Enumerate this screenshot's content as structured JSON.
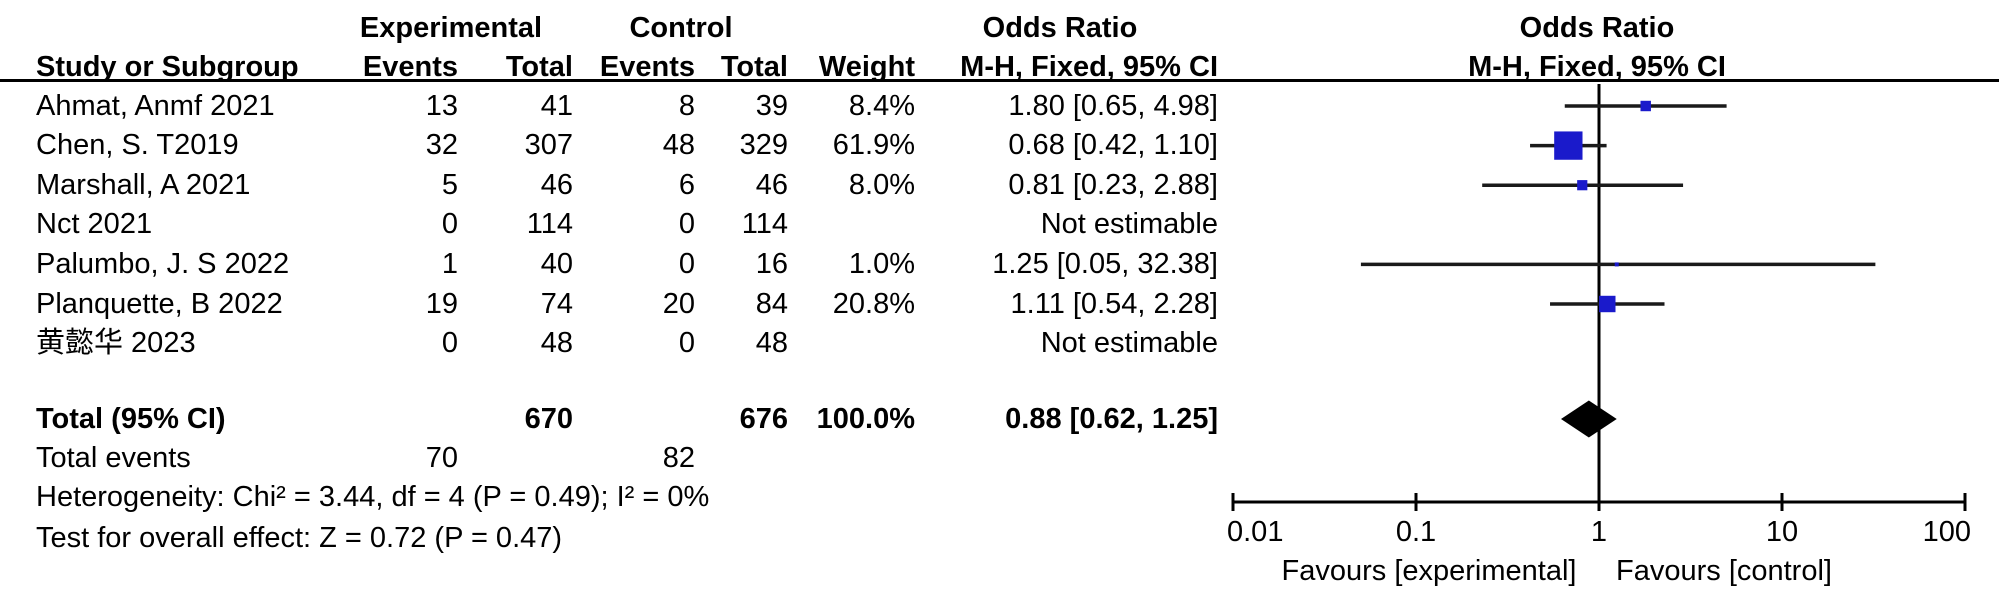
{
  "header": {
    "group_experimental": "Experimental",
    "group_control": "Control",
    "or_text_col_title": "Odds Ratio",
    "or_plot_col_title": "Odds Ratio",
    "col_study": "Study or Subgroup",
    "col_events_exp": "Events",
    "col_total_exp": "Total",
    "col_events_ctl": "Events",
    "col_total_ctl": "Total",
    "col_weight": "Weight",
    "col_or_text": "M-H, Fixed, 95% CI",
    "col_or_plot": "M-H, Fixed, 95% CI"
  },
  "studies": [
    {
      "name": "Ahmat, Anmf 2021",
      "events_exp": "13",
      "total_exp": "41",
      "events_ctl": "8",
      "total_ctl": "39",
      "weight": "8.4%",
      "or_ci": "1.80 [0.65, 4.98]"
    },
    {
      "name": "Chen, S. T2019",
      "events_exp": "32",
      "total_exp": "307",
      "events_ctl": "48",
      "total_ctl": "329",
      "weight": "61.9%",
      "or_ci": "0.68 [0.42, 1.10]"
    },
    {
      "name": "Marshall, A 2021",
      "events_exp": "5",
      "total_exp": "46",
      "events_ctl": "6",
      "total_ctl": "46",
      "weight": "8.0%",
      "or_ci": "0.81 [0.23, 2.88]"
    },
    {
      "name": "Nct 2021",
      "events_exp": "0",
      "total_exp": "114",
      "events_ctl": "0",
      "total_ctl": "114",
      "weight": "",
      "or_ci": "Not estimable"
    },
    {
      "name": "Palumbo, J. S 2022",
      "events_exp": "1",
      "total_exp": "40",
      "events_ctl": "0",
      "total_ctl": "16",
      "weight": "1.0%",
      "or_ci": "1.25 [0.05, 32.38]"
    },
    {
      "name": "Planquette, B 2022",
      "events_exp": "19",
      "total_exp": "74",
      "events_ctl": "20",
      "total_ctl": "84",
      "weight": "20.8%",
      "or_ci": "1.11 [0.54, 2.28]"
    },
    {
      "name": "黄懿华 2023",
      "events_exp": "0",
      "total_exp": "48",
      "events_ctl": "0",
      "total_ctl": "48",
      "weight": "",
      "or_ci": "Not estimable"
    }
  ],
  "totals": {
    "label": "Total (95% CI)",
    "total_exp": "670",
    "total_ctl": "676",
    "weight": "100.0%",
    "or_ci": "0.88 [0.62, 1.25]"
  },
  "total_events": {
    "label": "Total events",
    "exp": "70",
    "ctl": "82"
  },
  "footnotes": {
    "heterogeneity": "Heterogeneity: Chi² = 3.44, df = 4 (P = 0.49); I² = 0%",
    "overall_effect": "Test for overall effect: Z = 0.72 (P = 0.47)"
  },
  "axis": {
    "tick_labels": [
      "0.01",
      "0.1",
      "1",
      "10",
      "100"
    ],
    "favours_left": "Favours [experimental]",
    "favours_right": "Favours [control]"
  },
  "colors": {
    "square": "#1a1acb",
    "diamond": "#000000",
    "ci_line": "#1a1a1a",
    "axis": "#000000"
  },
  "chart_data": {
    "type": "forest",
    "effect_measure": "Odds Ratio, M-H, Fixed, 95% CI",
    "x_scale": "log10",
    "xlim": [
      0.01,
      100
    ],
    "x_ticks": [
      0.01,
      0.1,
      1,
      10,
      100
    ],
    "null_line": 1,
    "points": [
      {
        "name": "Ahmat, Anmf 2021",
        "or": 1.8,
        "lo": 0.65,
        "hi": 4.98,
        "weight_pct": 8.4,
        "estimable": true
      },
      {
        "name": "Chen, S. T2019",
        "or": 0.68,
        "lo": 0.42,
        "hi": 1.1,
        "weight_pct": 61.9,
        "estimable": true
      },
      {
        "name": "Marshall, A 2021",
        "or": 0.81,
        "lo": 0.23,
        "hi": 2.88,
        "weight_pct": 8.0,
        "estimable": true
      },
      {
        "name": "Nct 2021",
        "or": null,
        "lo": null,
        "hi": null,
        "weight_pct": null,
        "estimable": false
      },
      {
        "name": "Palumbo, J. S 2022",
        "or": 1.25,
        "lo": 0.05,
        "hi": 32.38,
        "weight_pct": 1.0,
        "estimable": true
      },
      {
        "name": "Planquette, B 2022",
        "or": 1.11,
        "lo": 0.54,
        "hi": 2.28,
        "weight_pct": 20.8,
        "estimable": true
      },
      {
        "name": "黄懿华 2023",
        "or": null,
        "lo": null,
        "hi": null,
        "weight_pct": null,
        "estimable": false
      }
    ],
    "total": {
      "name": "Total (95% CI)",
      "or": 0.88,
      "lo": 0.62,
      "hi": 1.25,
      "weight_pct": 100.0
    }
  }
}
